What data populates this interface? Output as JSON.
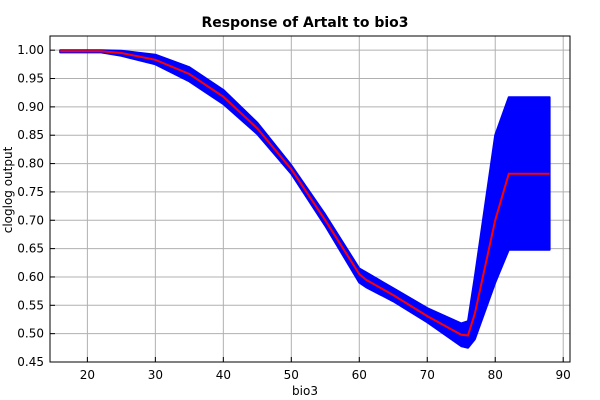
{
  "chart_data": {
    "type": "line",
    "title": "Response of Artalt to bio3",
    "xlabel": "bio3",
    "ylabel": "cloglog output",
    "xlim": [
      14.5,
      91
    ],
    "ylim": [
      0.45,
      1.025
    ],
    "xticks": [
      20,
      30,
      40,
      50,
      60,
      70,
      80,
      90
    ],
    "yticks": [
      0.45,
      0.5,
      0.55,
      0.6,
      0.65,
      0.7,
      0.75,
      0.8,
      0.85,
      0.9,
      0.95,
      1.0
    ],
    "ytick_labels": [
      "0.45",
      "0.50",
      "0.55",
      "0.60",
      "0.65",
      "0.70",
      "0.75",
      "0.80",
      "0.85",
      "0.90",
      "0.95",
      "1.00"
    ],
    "grid": true,
    "colors": {
      "mean": "#ff0000",
      "band": "#0000ff",
      "grid": "#b0b0b0"
    },
    "series": [
      {
        "role": "mean",
        "x": [
          16,
          20,
          22,
          25,
          30,
          35,
          40,
          45,
          50,
          55,
          60,
          61,
          65,
          70,
          75,
          76,
          77,
          80,
          82,
          85,
          88
        ],
        "y": [
          0.998,
          0.998,
          0.998,
          0.995,
          0.983,
          0.958,
          0.918,
          0.862,
          0.79,
          0.7,
          0.605,
          0.595,
          0.568,
          0.531,
          0.498,
          0.497,
          0.535,
          0.7,
          0.782,
          0.782,
          0.782
        ]
      },
      {
        "role": "band-upper",
        "x": [
          16,
          20,
          22,
          25,
          30,
          35,
          40,
          45,
          50,
          55,
          60,
          61,
          65,
          70,
          75,
          76,
          77,
          80,
          82,
          85,
          88
        ],
        "y": [
          1.0,
          1.0,
          1.0,
          0.999,
          0.992,
          0.97,
          0.93,
          0.872,
          0.797,
          0.71,
          0.615,
          0.608,
          0.58,
          0.545,
          0.518,
          0.522,
          0.6,
          0.85,
          0.917,
          0.917,
          0.917
        ]
      },
      {
        "role": "band-lower",
        "x": [
          16,
          20,
          22,
          25,
          30,
          35,
          40,
          45,
          50,
          55,
          60,
          61,
          65,
          70,
          75,
          76,
          77,
          80,
          82,
          85,
          88
        ],
        "y": [
          0.996,
          0.996,
          0.996,
          0.99,
          0.975,
          0.945,
          0.905,
          0.852,
          0.782,
          0.69,
          0.59,
          0.582,
          0.557,
          0.52,
          0.478,
          0.475,
          0.49,
          0.59,
          0.648,
          0.648,
          0.648
        ]
      }
    ]
  }
}
